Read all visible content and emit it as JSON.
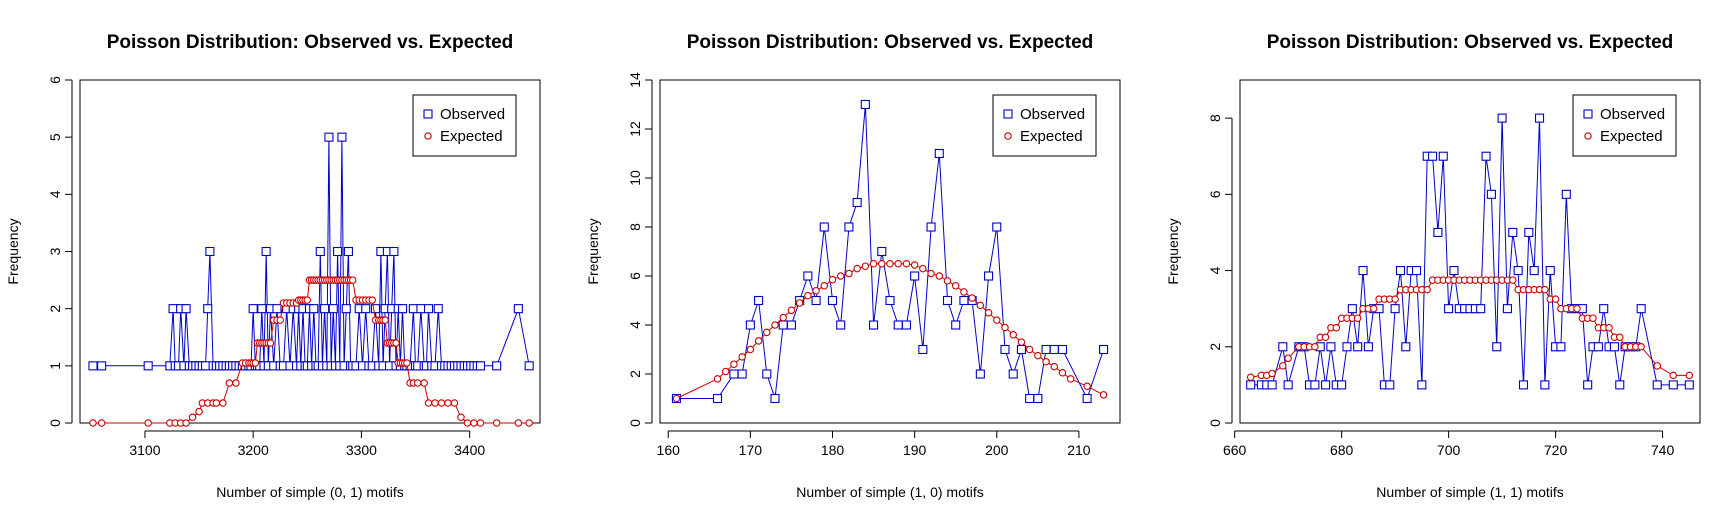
{
  "colors": {
    "observed": "#0000CC",
    "expected": "#CC0000",
    "axis": "#000000"
  },
  "chart_data": [
    {
      "type": "line",
      "title": "Poisson Distribution: Observed vs. Expected",
      "xlabel": "Number of simple (0, 1) motifs",
      "ylabel": "Frequency",
      "xlim": [
        3040,
        3465
      ],
      "ylim": [
        0,
        6
      ],
      "xticks": [
        3100,
        3200,
        3300,
        3400
      ],
      "yticks": [
        0,
        1,
        2,
        3,
        4,
        5,
        6
      ],
      "legend": {
        "position": "top-right",
        "entries": [
          "Observed",
          "Expected"
        ]
      },
      "series": [
        {
          "name": "Observed",
          "marker": "square",
          "x": [
            3052,
            3060,
            3103,
            3123,
            3126,
            3128,
            3131,
            3133,
            3136,
            3138,
            3141,
            3144,
            3147,
            3150,
            3153,
            3156,
            3158,
            3160,
            3163,
            3166,
            3169,
            3172,
            3175,
            3178,
            3181,
            3184,
            3187,
            3190,
            3193,
            3196,
            3198,
            3200,
            3202,
            3204,
            3206,
            3208,
            3210,
            3212,
            3214,
            3216,
            3219,
            3222,
            3225,
            3228,
            3231,
            3234,
            3237,
            3240,
            3242,
            3244,
            3246,
            3248,
            3250,
            3252,
            3254,
            3256,
            3258,
            3260,
            3262,
            3264,
            3266,
            3268,
            3270,
            3272,
            3274,
            3276,
            3278,
            3280,
            3282,
            3284,
            3286,
            3288,
            3290,
            3292,
            3295,
            3298,
            3301,
            3304,
            3307,
            3310,
            3313,
            3316,
            3318,
            3320,
            3322,
            3324,
            3326,
            3328,
            3330,
            3332,
            3334,
            3336,
            3338,
            3340,
            3342,
            3345,
            3348,
            3350,
            3352,
            3355,
            3358,
            3360,
            3362,
            3365,
            3368,
            3371,
            3374,
            3377,
            3380,
            3383,
            3386,
            3389,
            3392,
            3395,
            3398,
            3401,
            3404,
            3407,
            3410,
            3425,
            3445,
            3455
          ],
          "y": [
            1,
            1,
            1,
            1,
            2,
            1,
            1,
            2,
            1,
            2,
            1,
            1,
            1,
            1,
            1,
            1,
            2,
            3,
            1,
            1,
            1,
            1,
            1,
            1,
            1,
            1,
            1,
            1,
            1,
            1,
            1,
            2,
            1,
            1,
            1,
            2,
            1,
            3,
            1,
            2,
            1,
            2,
            1,
            1,
            2,
            1,
            2,
            1,
            2,
            1,
            2,
            1,
            1,
            2,
            1,
            2,
            1,
            1,
            3,
            1,
            2,
            1,
            5,
            1,
            2,
            1,
            3,
            1,
            5,
            1,
            2,
            3,
            1,
            1,
            1,
            2,
            1,
            2,
            1,
            1,
            2,
            1,
            3,
            1,
            2,
            3,
            1,
            2,
            3,
            1,
            2,
            1,
            2,
            1,
            1,
            1,
            2,
            1,
            1,
            2,
            1,
            1,
            2,
            1,
            1,
            2,
            1,
            1,
            1,
            1,
            1,
            1,
            1,
            1,
            1,
            1,
            1,
            1,
            1,
            1,
            2,
            1
          ]
        },
        {
          "name": "Expected",
          "marker": "circle",
          "x": [
            3052,
            3060,
            3103,
            3123,
            3128,
            3133,
            3138,
            3144,
            3150,
            3153,
            3158,
            3163,
            3166,
            3172,
            3178,
            3184,
            3190,
            3193,
            3196,
            3198,
            3200,
            3202,
            3204,
            3206,
            3208,
            3210,
            3212,
            3214,
            3216,
            3219,
            3222,
            3225,
            3228,
            3231,
            3234,
            3237,
            3240,
            3242,
            3244,
            3246,
            3248,
            3250,
            3252,
            3254,
            3256,
            3258,
            3260,
            3262,
            3264,
            3266,
            3268,
            3270,
            3272,
            3274,
            3276,
            3278,
            3280,
            3282,
            3284,
            3286,
            3288,
            3290,
            3292,
            3295,
            3298,
            3301,
            3304,
            3307,
            3310,
            3313,
            3316,
            3318,
            3320,
            3322,
            3324,
            3326,
            3328,
            3330,
            3332,
            3334,
            3336,
            3338,
            3340,
            3342,
            3345,
            3348,
            3352,
            3358,
            3362,
            3368,
            3374,
            3380,
            3386,
            3392,
            3398,
            3404,
            3410,
            3425,
            3445,
            3455
          ],
          "y": [
            0,
            0,
            0,
            0,
            0,
            0,
            0,
            0.1,
            0.2,
            0.35,
            0.35,
            0.35,
            0.35,
            0.35,
            0.7,
            0.7,
            1.05,
            1.05,
            1.05,
            1.05,
            1.05,
            1.05,
            1.4,
            1.4,
            1.4,
            1.4,
            1.4,
            1.4,
            1.4,
            1.8,
            1.8,
            1.8,
            2.1,
            2.1,
            2.1,
            2.1,
            2.1,
            2.15,
            2.15,
            2.15,
            2.15,
            2.15,
            2.5,
            2.5,
            2.5,
            2.5,
            2.5,
            2.5,
            2.5,
            2.5,
            2.5,
            2.5,
            2.5,
            2.5,
            2.5,
            2.5,
            2.5,
            2.5,
            2.5,
            2.5,
            2.5,
            2.5,
            2.5,
            2.15,
            2.15,
            2.15,
            2.15,
            2.15,
            2.15,
            1.8,
            1.8,
            1.8,
            1.8,
            1.8,
            1.4,
            1.4,
            1.4,
            1.4,
            1.4,
            1.05,
            1.05,
            1.05,
            1.05,
            1.05,
            0.7,
            0.7,
            0.7,
            0.7,
            0.35,
            0.35,
            0.35,
            0.35,
            0.35,
            0.1,
            0,
            0,
            0,
            0,
            0,
            0
          ]
        }
      ]
    },
    {
      "type": "line",
      "title": "Poisson Distribution: Observed vs. Expected",
      "xlabel": "Number of simple (1, 0) motifs",
      "ylabel": "Frequency",
      "xlim": [
        159,
        215
      ],
      "ylim": [
        0,
        14
      ],
      "xticks": [
        160,
        170,
        180,
        190,
        200,
        210
      ],
      "yticks": [
        0,
        2,
        4,
        6,
        8,
        10,
        12,
        14
      ],
      "legend": {
        "position": "top-right",
        "entries": [
          "Observed",
          "Expected"
        ]
      },
      "series": [
        {
          "name": "Observed",
          "marker": "square",
          "x": [
            161,
            166,
            168,
            169,
            170,
            171,
            172,
            173,
            174,
            175,
            176,
            177,
            178,
            179,
            180,
            181,
            182,
            183,
            184,
            185,
            186,
            187,
            188,
            189,
            190,
            191,
            192,
            193,
            194,
            195,
            196,
            197,
            198,
            199,
            200,
            201,
            202,
            203,
            204,
            205,
            206,
            207,
            208,
            211,
            213
          ],
          "y": [
            1,
            1,
            2,
            2,
            4,
            5,
            2,
            1,
            4,
            4,
            5,
            6,
            5,
            8,
            5,
            4,
            8,
            9,
            13,
            4,
            7,
            5,
            4,
            4,
            6,
            3,
            8,
            11,
            5,
            4,
            5,
            5,
            2,
            6,
            8,
            3,
            2,
            3,
            1,
            1,
            3,
            3,
            3,
            1,
            3
          ]
        },
        {
          "name": "Expected",
          "marker": "circle",
          "x": [
            161,
            166,
            167,
            168,
            169,
            170,
            171,
            172,
            173,
            174,
            175,
            176,
            177,
            178,
            179,
            180,
            181,
            182,
            183,
            184,
            185,
            186,
            187,
            188,
            189,
            190,
            191,
            192,
            193,
            194,
            195,
            196,
            197,
            198,
            199,
            200,
            201,
            202,
            203,
            204,
            205,
            206,
            207,
            208,
            209,
            211,
            213
          ],
          "y": [
            1,
            1.8,
            2.1,
            2.4,
            2.7,
            3,
            3.35,
            3.7,
            4,
            4.3,
            4.6,
            4.9,
            5.2,
            5.4,
            5.6,
            5.85,
            6,
            6.1,
            6.3,
            6.4,
            6.5,
            6.5,
            6.5,
            6.5,
            6.5,
            6.45,
            6.3,
            6.1,
            6,
            5.8,
            5.6,
            5.35,
            5.1,
            4.8,
            4.5,
            4.2,
            3.9,
            3.6,
            3.3,
            3,
            2.75,
            2.5,
            2.3,
            2.05,
            1.8,
            1.5,
            1.15
          ]
        }
      ]
    },
    {
      "type": "line",
      "title": "Poisson Distribution: Observed vs. Expected",
      "xlabel": "Number of simple (1, 1) motifs",
      "ylabel": "Frequency",
      "xlim": [
        661,
        747
      ],
      "ylim": [
        0,
        9
      ],
      "xticks": [
        660,
        680,
        700,
        720,
        740
      ],
      "yticks": [
        0,
        2,
        4,
        6,
        8
      ],
      "legend": {
        "position": "top-right",
        "entries": [
          "Observed",
          "Expected"
        ]
      },
      "series": [
        {
          "name": "Observed",
          "marker": "square",
          "x": [
            663,
            665,
            666,
            667,
            669,
            670,
            672,
            673,
            674,
            675,
            676,
            677,
            678,
            679,
            680,
            681,
            682,
            683,
            684,
            685,
            686,
            687,
            688,
            689,
            690,
            691,
            692,
            693,
            694,
            695,
            696,
            697,
            698,
            699,
            700,
            701,
            702,
            703,
            704,
            705,
            706,
            707,
            708,
            709,
            710,
            711,
            712,
            713,
            714,
            715,
            716,
            717,
            718,
            719,
            720,
            721,
            722,
            723,
            724,
            725,
            726,
            727,
            728,
            729,
            730,
            731,
            732,
            733,
            734,
            735,
            736,
            739,
            742,
            745
          ],
          "y": [
            1,
            1,
            1,
            1,
            2,
            1,
            2,
            2,
            1,
            1,
            2,
            1,
            2,
            1,
            1,
            2,
            3,
            2,
            4,
            2,
            3,
            3,
            1,
            1,
            3,
            4,
            2,
            4,
            4,
            1,
            7,
            7,
            5,
            7,
            3,
            4,
            3,
            3,
            3,
            3,
            3,
            7,
            6,
            2,
            8,
            3,
            5,
            4,
            1,
            5,
            4,
            8,
            1,
            4,
            2,
            2,
            6,
            3,
            3,
            3,
            1,
            2,
            2,
            3,
            2,
            2,
            1,
            2,
            2,
            2,
            3,
            1,
            1,
            1
          ]
        },
        {
          "name": "Expected",
          "marker": "circle",
          "x": [
            663,
            665,
            666,
            667,
            669,
            670,
            672,
            673,
            674,
            675,
            676,
            677,
            678,
            679,
            680,
            681,
            682,
            683,
            684,
            685,
            686,
            687,
            688,
            689,
            690,
            691,
            692,
            693,
            694,
            695,
            696,
            697,
            698,
            699,
            700,
            701,
            702,
            703,
            704,
            705,
            706,
            707,
            708,
            709,
            710,
            711,
            712,
            713,
            714,
            715,
            716,
            717,
            718,
            719,
            720,
            721,
            722,
            723,
            724,
            725,
            726,
            727,
            728,
            729,
            730,
            731,
            732,
            733,
            734,
            735,
            736,
            739,
            742,
            745
          ],
          "y": [
            1.2,
            1.25,
            1.25,
            1.3,
            1.5,
            1.7,
            2,
            2,
            2,
            2,
            2.25,
            2.25,
            2.5,
            2.5,
            2.75,
            2.75,
            2.75,
            2.75,
            3,
            3,
            3,
            3.25,
            3.25,
            3.25,
            3.25,
            3.5,
            3.5,
            3.5,
            3.5,
            3.5,
            3.5,
            3.75,
            3.75,
            3.75,
            3.75,
            3.75,
            3.75,
            3.75,
            3.75,
            3.75,
            3.75,
            3.75,
            3.75,
            3.75,
            3.75,
            3.75,
            3.75,
            3.5,
            3.5,
            3.5,
            3.5,
            3.5,
            3.5,
            3.25,
            3.25,
            3,
            3,
            3,
            3,
            2.75,
            2.75,
            2.75,
            2.5,
            2.5,
            2.5,
            2.25,
            2.25,
            2,
            2,
            2,
            2,
            1.5,
            1.25,
            1.25
          ]
        }
      ]
    }
  ]
}
